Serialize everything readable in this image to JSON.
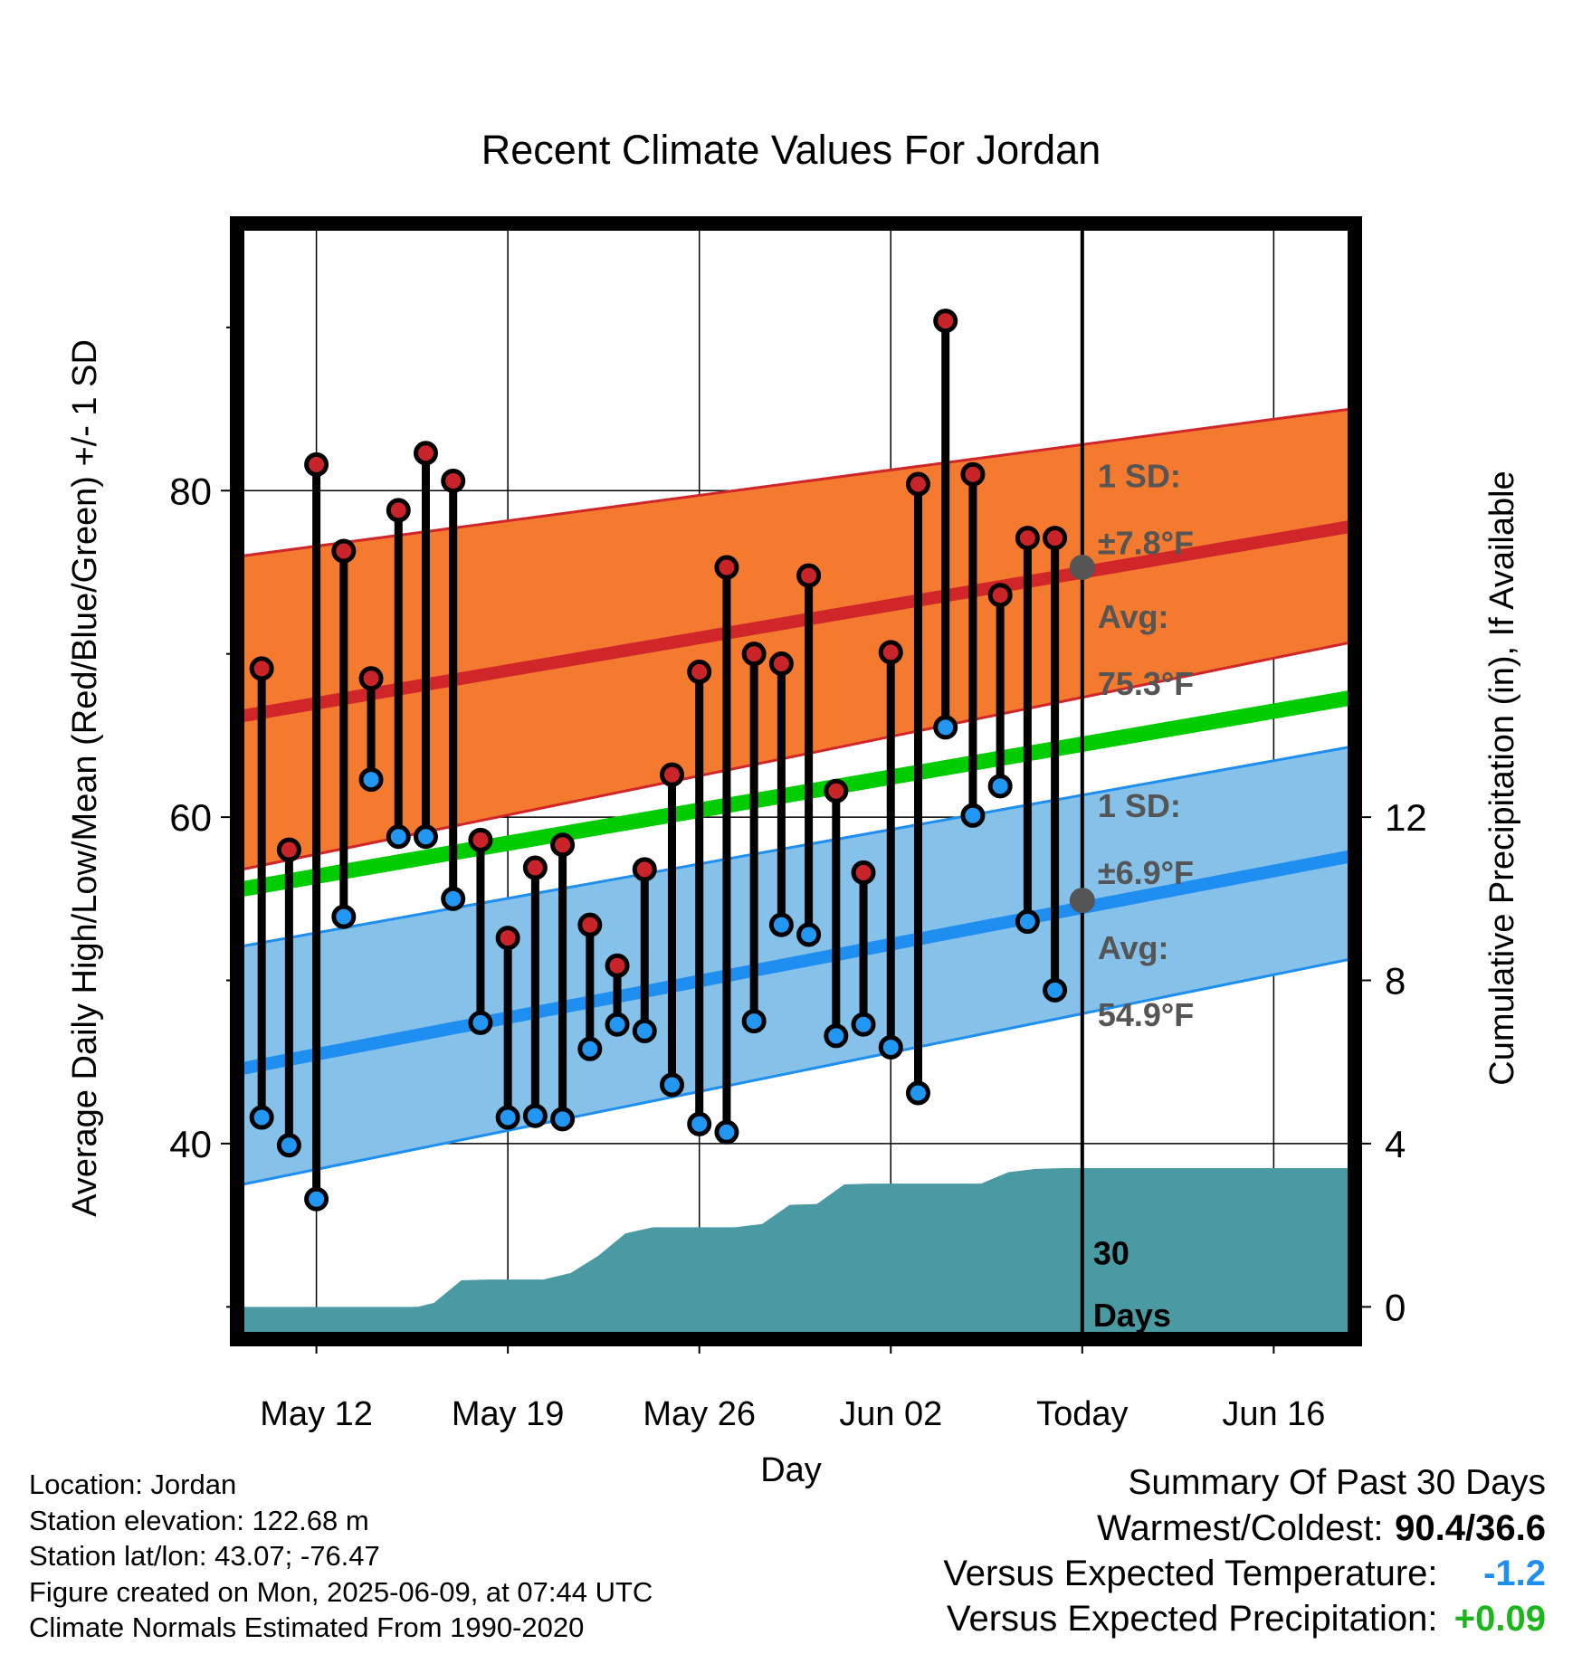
{
  "chart_data": {
    "type": "line",
    "title": "Recent Climate Values For Jordan",
    "xlabel": "Day",
    "ylabel_left": "Average Daily High/Low/Mean (Red/Blue/Green) +/- 1 SD",
    "ylabel_right": "Cumulative Precipitation (in), If Available",
    "x_ticks": [
      {
        "day": 12,
        "label": "May 12"
      },
      {
        "day": 19,
        "label": "May 19"
      },
      {
        "day": 26,
        "label": "May 26"
      },
      {
        "day": 33,
        "label": "Jun 02"
      },
      {
        "day": 40,
        "label": "Today"
      },
      {
        "day": 47,
        "label": "Jun 16"
      }
    ],
    "xlim_days": [
      9.3,
      49.8
    ],
    "left_axis": {
      "ylim": [
        28.3,
        96.2
      ],
      "ticks": [
        40,
        60,
        80
      ],
      "minor_ticks": [
        30,
        50,
        70,
        90
      ]
    },
    "right_axis": {
      "ticks": [
        0,
        4,
        8,
        12
      ],
      "value_at_left_40": 4,
      "value_at_left_60": 12
    },
    "today_day": 40,
    "observations": {
      "days": [
        10,
        11,
        12,
        13,
        14,
        15,
        16,
        17,
        18,
        19,
        20,
        21,
        22,
        23,
        24,
        25,
        26,
        27,
        28,
        29,
        30,
        31,
        32,
        33,
        34,
        35,
        36,
        37,
        38,
        39
      ],
      "high": [
        69.1,
        58.0,
        81.6,
        76.3,
        68.5,
        78.8,
        82.3,
        80.6,
        58.6,
        52.6,
        56.9,
        58.3,
        53.4,
        50.9,
        56.8,
        62.6,
        68.9,
        75.3,
        70.0,
        69.4,
        74.8,
        61.6,
        56.6,
        70.1,
        80.4,
        90.4,
        81.0,
        73.6,
        77.1,
        77.1
      ],
      "low": [
        41.6,
        39.9,
        36.6,
        53.9,
        62.3,
        58.8,
        58.8,
        55.0,
        47.4,
        41.6,
        41.7,
        41.5,
        45.8,
        47.3,
        46.9,
        43.6,
        41.2,
        40.7,
        47.5,
        53.4,
        52.8,
        46.6,
        47.3,
        45.9,
        43.1,
        65.5,
        60.1,
        61.9,
        53.6,
        49.4
      ]
    },
    "normals": {
      "days": [
        9.3,
        49.8
      ],
      "high_avg": [
        66.2,
        77.8
      ],
      "high_sd_upper": [
        76.0,
        85.0
      ],
      "high_sd_lower": [
        56.8,
        70.7
      ],
      "mean_avg": [
        55.6,
        67.3
      ],
      "low_avg": [
        44.6,
        57.6
      ],
      "low_sd_upper": [
        52.1,
        64.3
      ],
      "low_sd_lower": [
        37.5,
        51.3
      ]
    },
    "precipitation": {
      "days": [
        9.3,
        15.7,
        16.3,
        17.3,
        18.3,
        19.3,
        20.3,
        21.3,
        22.3,
        23.3,
        24.3,
        25.3,
        26.3,
        27.3,
        28.3,
        29.3,
        30.3,
        31.3,
        32.3,
        33.3,
        34.3,
        35.3,
        36.3,
        37.3,
        38.3,
        39.3,
        40.3,
        49.8
      ],
      "cumulative_in": [
        0,
        0,
        0.1,
        0.65,
        0.67,
        0.67,
        0.67,
        0.83,
        1.25,
        1.8,
        1.95,
        1.95,
        1.95,
        1.95,
        2.03,
        2.5,
        2.52,
        3.0,
        3.02,
        3.02,
        3.02,
        3.02,
        3.02,
        3.3,
        3.38,
        3.4,
        3.4,
        3.4
      ]
    },
    "annotations": {
      "high_sd_label": [
        "1 SD:",
        "±7.8°F"
      ],
      "high_avg_label": [
        "Avg:",
        "75.3°F"
      ],
      "low_sd_label": [
        "1 SD:",
        "±6.9°F"
      ],
      "low_avg_label": [
        "Avg:",
        "54.9°F"
      ],
      "days_label": [
        "30",
        "Days"
      ],
      "today_high_avg": 75.3,
      "today_low_avg": 54.9
    },
    "colors": {
      "high_band": "#f37a2e",
      "high_line": "#d0262a",
      "low_band": "#85c1e8",
      "low_line": "#1e8ef0",
      "mean_line": "#00cc00",
      "precip": "#4a9aa3",
      "high_dot": "#c8242a",
      "low_dot": "#2196f3",
      "annotation": "#555555"
    }
  },
  "footer": [
    "Location: Jordan",
    "Station elevation: 122.68 m",
    "Station lat/lon: 43.07; -76.47",
    "Figure created on Mon, 2025-06-09, at 07:44 UTC",
    "Climate Normals Estimated From 1990-2020"
  ],
  "summary": {
    "title": "Summary Of Past 30 Days",
    "warm_cold_label": "Warmest/Coldest:",
    "warm_cold_value": "90.4/36.6",
    "temp_label": "Versus Expected Temperature:",
    "temp_value": "-1.2",
    "temp_color": "#1e8ef0",
    "precip_label": "Versus Expected Precipitation:",
    "precip_value": "+0.09",
    "precip_color": "#1db51d"
  }
}
